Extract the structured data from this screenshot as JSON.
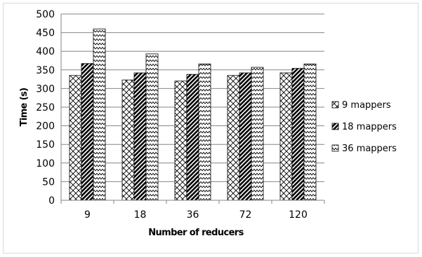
{
  "chart_data": {
    "type": "bar",
    "title": "",
    "xlabel": "Number of reducers",
    "ylabel": "Time (s)",
    "ylim": [
      0,
      500
    ],
    "ytick_step": 50,
    "grid": "horizontal",
    "legend_position": "right",
    "categories": [
      "9",
      "18",
      "36",
      "72",
      "120"
    ],
    "series": [
      {
        "name": "9 mappers",
        "pattern": "diamond-crosshatch",
        "values": [
          335,
          323,
          320,
          335,
          342
        ]
      },
      {
        "name": "18 mappers",
        "pattern": "dark-diagonal",
        "values": [
          367,
          342,
          338,
          342,
          354
        ]
      },
      {
        "name": "36 mappers",
        "pattern": "zigzag",
        "values": [
          460,
          393,
          366,
          357,
          366
        ]
      }
    ]
  }
}
